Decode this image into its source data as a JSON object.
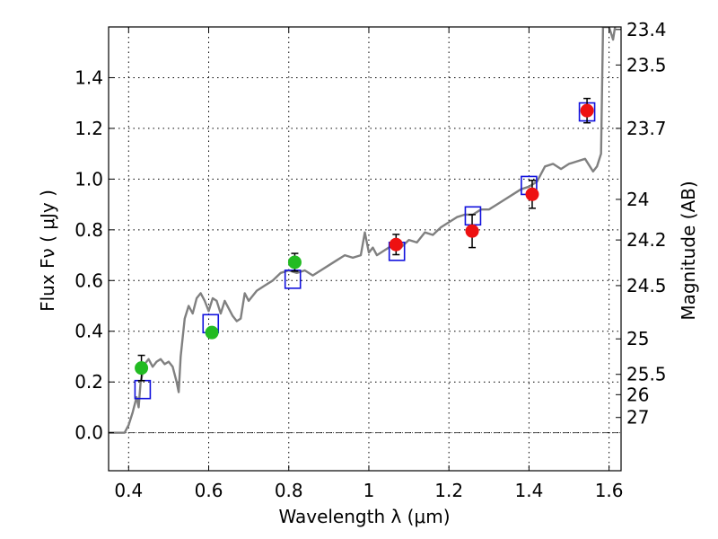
{
  "chart_data": {
    "type": "scatter",
    "title": "",
    "xlabel": "Wavelength  λ (μm)",
    "ylabel": "Flux  Fν  ( μJy )",
    "ylabel_right": "Magnitude (AB)",
    "xlim": [
      0.35,
      1.63
    ],
    "ylim": [
      -0.15,
      1.6
    ],
    "grid": true,
    "x_ticks": [
      {
        "value": 0.4,
        "label": "0.4"
      },
      {
        "value": 0.6,
        "label": "0.6"
      },
      {
        "value": 0.8,
        "label": "0.8"
      },
      {
        "value": 1.0,
        "label": "1"
      },
      {
        "value": 1.2,
        "label": "1.2"
      },
      {
        "value": 1.4,
        "label": "1.4"
      },
      {
        "value": 1.6,
        "label": "1.6"
      }
    ],
    "y_ticks": [
      {
        "value": 0.0,
        "label": "0.0"
      },
      {
        "value": 0.2,
        "label": "0.2"
      },
      {
        "value": 0.4,
        "label": "0.4"
      },
      {
        "value": 0.6,
        "label": "0.6"
      },
      {
        "value": 0.8,
        "label": "0.8"
      },
      {
        "value": 1.0,
        "label": "1.0"
      },
      {
        "value": 1.2,
        "label": "1.2"
      },
      {
        "value": 1.4,
        "label": "1.4"
      }
    ],
    "mag_ticks": [
      {
        "flux": 1.59,
        "label": "23.4"
      },
      {
        "flux": 1.45,
        "label": "23.5"
      },
      {
        "flux": 1.2,
        "label": "23.7"
      },
      {
        "flux": 0.92,
        "label": "24"
      },
      {
        "flux": 0.76,
        "label": "24.2"
      },
      {
        "flux": 0.58,
        "label": "24.5"
      },
      {
        "flux": 0.37,
        "label": "25"
      },
      {
        "flux": 0.23,
        "label": "25.5"
      },
      {
        "flux": 0.15,
        "label": "26"
      },
      {
        "flux": 0.06,
        "label": "27"
      }
    ],
    "colors": {
      "template": "#808080",
      "green_points": "#22bb22",
      "red_points": "#ee1111",
      "model_boxes": "#1111dd",
      "zero_line": "#555555"
    },
    "series": [
      {
        "kind": "line",
        "x": [
          0.35,
          0.39,
          0.4,
          0.41,
          0.42,
          0.425,
          0.43,
          0.44,
          0.45,
          0.46,
          0.47,
          0.48,
          0.49,
          0.5,
          0.51,
          0.52,
          0.525,
          0.53,
          0.54,
          0.55,
          0.56,
          0.57,
          0.58,
          0.59,
          0.6,
          0.61,
          0.62,
          0.63,
          0.64,
          0.65,
          0.66,
          0.67,
          0.68,
          0.69,
          0.7,
          0.72,
          0.74,
          0.76,
          0.78,
          0.8,
          0.82,
          0.84,
          0.86,
          0.88,
          0.9,
          0.92,
          0.94,
          0.96,
          0.98,
          0.99,
          1.0,
          1.01,
          1.02,
          1.04,
          1.06,
          1.08,
          1.1,
          1.12,
          1.14,
          1.16,
          1.18,
          1.2,
          1.22,
          1.24,
          1.26,
          1.28,
          1.3,
          1.32,
          1.34,
          1.36,
          1.38,
          1.4,
          1.42,
          1.44,
          1.46,
          1.48,
          1.5,
          1.52,
          1.54,
          1.56,
          1.57,
          1.58,
          1.585,
          1.59,
          1.6,
          1.61,
          1.62
        ],
        "y": [
          0.0,
          0.0,
          0.03,
          0.08,
          0.14,
          0.1,
          0.2,
          0.27,
          0.29,
          0.26,
          0.28,
          0.29,
          0.27,
          0.28,
          0.26,
          0.2,
          0.16,
          0.3,
          0.45,
          0.5,
          0.47,
          0.53,
          0.55,
          0.52,
          0.48,
          0.53,
          0.52,
          0.47,
          0.52,
          0.49,
          0.46,
          0.44,
          0.45,
          0.55,
          0.52,
          0.56,
          0.58,
          0.6,
          0.63,
          0.64,
          0.63,
          0.64,
          0.62,
          0.64,
          0.66,
          0.68,
          0.7,
          0.69,
          0.7,
          0.79,
          0.71,
          0.73,
          0.7,
          0.72,
          0.74,
          0.73,
          0.76,
          0.75,
          0.79,
          0.78,
          0.81,
          0.83,
          0.85,
          0.86,
          0.86,
          0.88,
          0.88,
          0.9,
          0.92,
          0.94,
          0.96,
          0.97,
          0.99,
          1.05,
          1.06,
          1.04,
          1.06,
          1.07,
          1.08,
          1.03,
          1.05,
          1.1,
          1.6,
          1.6,
          1.6,
          1.55,
          1.65
        ]
      },
      {
        "kind": "points",
        "x": [
          0.432,
          0.608,
          0.815
        ],
        "y": [
          0.255,
          0.395,
          0.672
        ],
        "yerr": [
          0.05,
          0.0,
          0.035
        ]
      },
      {
        "kind": "points",
        "x": [
          1.068,
          1.258,
          1.408,
          1.545
        ],
        "y": [
          0.742,
          0.795,
          0.94,
          1.27
        ],
        "yerr": [
          0.04,
          0.065,
          0.055,
          0.048
        ]
      },
      {
        "kind": "boxes",
        "x": [
          0.435,
          0.605,
          0.81,
          1.07,
          1.26,
          1.4,
          1.545
        ],
        "y": [
          0.17,
          0.43,
          0.605,
          0.715,
          0.855,
          0.975,
          1.265
        ]
      }
    ]
  }
}
